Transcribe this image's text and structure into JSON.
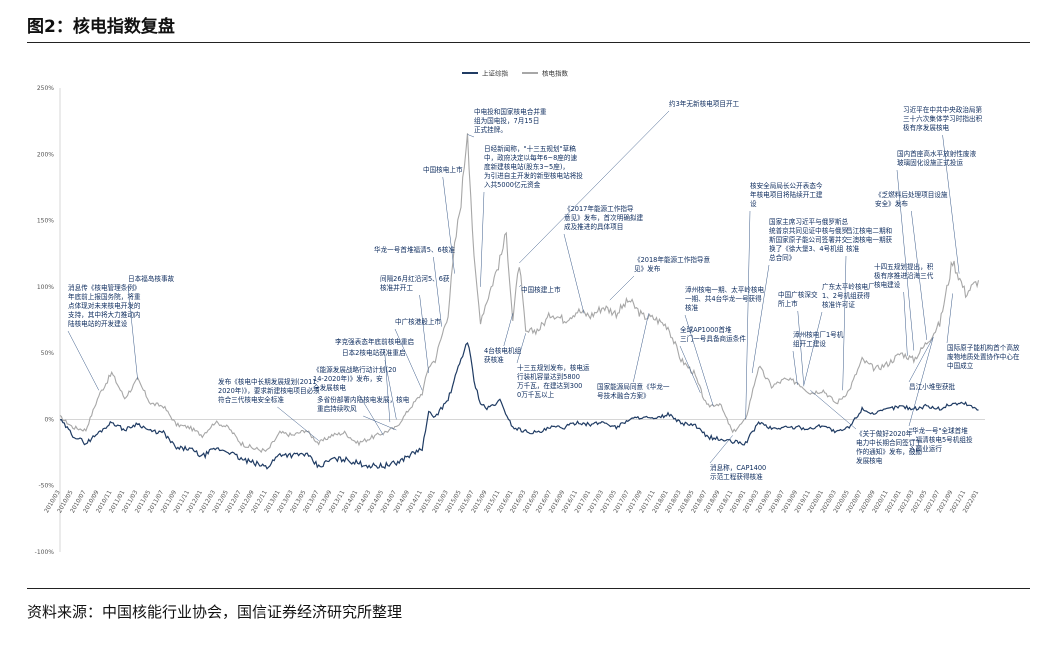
{
  "figure": {
    "title": "图2：核电指数复盘",
    "source": "资料来源：中国核能行业协会，国信证券经济研究所整理"
  },
  "chart_data": {
    "type": "line",
    "ylim": [
      -100,
      250
    ],
    "yticks": [
      "250%",
      "200%",
      "150%",
      "100%",
      "50%",
      "0%",
      "-50%",
      "-100%"
    ],
    "xticks": [
      "2010/03",
      "2010/05",
      "2010/07",
      "2010/09",
      "2010/11",
      "2011/01",
      "2011/03",
      "2011/05",
      "2011/07",
      "2011/09",
      "2011/11",
      "2012/01",
      "2012/03",
      "2012/05",
      "2012/07",
      "2012/09",
      "2012/11",
      "2013/01",
      "2013/03",
      "2013/05",
      "2013/07",
      "2013/09",
      "2013/11",
      "2014/01",
      "2014/03",
      "2014/05",
      "2014/07",
      "2014/09",
      "2014/11",
      "2015/01",
      "2015/03",
      "2015/05",
      "2015/07",
      "2015/09",
      "2015/11",
      "2016/01",
      "2016/03",
      "2016/05",
      "2016/07",
      "2016/09",
      "2016/11",
      "2017/01",
      "2017/03",
      "2017/05",
      "2017/07",
      "2017/09",
      "2017/11",
      "2018/01",
      "2018/03",
      "2018/05",
      "2018/07",
      "2018/09",
      "2018/11",
      "2019/01",
      "2019/03",
      "2019/05",
      "2019/07",
      "2019/09",
      "2019/11",
      "2020/01",
      "2020/03",
      "2020/05",
      "2020/07",
      "2020/09",
      "2020/11",
      "2021/01",
      "2021/03",
      "2021/05",
      "2021/07",
      "2021/09",
      "2021/11",
      "2022/01"
    ],
    "series": [
      {
        "name": "上证综指",
        "color": "#1f3b63",
        "points": [
          [
            "2010/03",
            0
          ],
          [
            "2010/05",
            -12
          ],
          [
            "2010/07",
            -18
          ],
          [
            "2010/09",
            -10
          ],
          [
            "2010/11",
            -2
          ],
          [
            "2011/01",
            -8
          ],
          [
            "2011/03",
            -3
          ],
          [
            "2011/05",
            -9
          ],
          [
            "2011/07",
            -10
          ],
          [
            "2011/09",
            -22
          ],
          [
            "2011/11",
            -22
          ],
          [
            "2012/01",
            -28
          ],
          [
            "2012/03",
            -22
          ],
          [
            "2012/05",
            -24
          ],
          [
            "2012/07",
            -30
          ],
          [
            "2012/09",
            -33
          ],
          [
            "2012/11",
            -36
          ],
          [
            "2013/01",
            -26
          ],
          [
            "2013/03",
            -27
          ],
          [
            "2013/05",
            -26
          ],
          [
            "2013/07",
            -36
          ],
          [
            "2013/09",
            -30
          ],
          [
            "2013/11",
            -30
          ],
          [
            "2014/01",
            -33
          ],
          [
            "2014/03",
            -35
          ],
          [
            "2014/05",
            -35
          ],
          [
            "2014/07",
            -33
          ],
          [
            "2014/09",
            -27
          ],
          [
            "2014/11",
            -22
          ],
          [
            "2014/12",
            5
          ],
          [
            "2015/01",
            2
          ],
          [
            "2015/03",
            15
          ],
          [
            "2015/05",
            45
          ],
          [
            "2015/06",
            60
          ],
          [
            "2015/07",
            30
          ],
          [
            "2015/08",
            12
          ],
          [
            "2015/09",
            8
          ],
          [
            "2015/11",
            14
          ],
          [
            "2016/01",
            -6
          ],
          [
            "2016/03",
            -9
          ],
          [
            "2016/05",
            -10
          ],
          [
            "2016/07",
            -6
          ],
          [
            "2016/09",
            -6
          ],
          [
            "2016/11",
            -2
          ],
          [
            "2017/01",
            -4
          ],
          [
            "2017/03",
            -2
          ],
          [
            "2017/05",
            -6
          ],
          [
            "2017/07",
            0
          ],
          [
            "2017/09",
            2
          ],
          [
            "2017/11",
            0
          ],
          [
            "2018/01",
            4
          ],
          [
            "2018/03",
            -3
          ],
          [
            "2018/05",
            -4
          ],
          [
            "2018/07",
            -13
          ],
          [
            "2018/09",
            -15
          ],
          [
            "2018/11",
            -17
          ],
          [
            "2019/01",
            -18
          ],
          [
            "2019/03",
            -2
          ],
          [
            "2019/05",
            -7
          ],
          [
            "2019/07",
            -6
          ],
          [
            "2019/09",
            -6
          ],
          [
            "2019/11",
            -7
          ],
          [
            "2020/01",
            -4
          ],
          [
            "2020/03",
            -10
          ],
          [
            "2020/05",
            -6
          ],
          [
            "2020/07",
            8
          ],
          [
            "2020/09",
            4
          ],
          [
            "2020/11",
            8
          ],
          [
            "2021/01",
            10
          ],
          [
            "2021/03",
            8
          ],
          [
            "2021/05",
            10
          ],
          [
            "2021/07",
            8
          ],
          [
            "2021/09",
            12
          ],
          [
            "2021/11",
            12
          ],
          [
            "2022/01",
            7
          ]
        ]
      },
      {
        "name": "核电指数",
        "color": "#a7a7a7",
        "points": [
          [
            "2010/03",
            2
          ],
          [
            "2010/05",
            -6
          ],
          [
            "2010/07",
            -8
          ],
          [
            "2010/09",
            18
          ],
          [
            "2010/11",
            35
          ],
          [
            "2011/01",
            16
          ],
          [
            "2011/03",
            30
          ],
          [
            "2011/05",
            12
          ],
          [
            "2011/07",
            10
          ],
          [
            "2011/09",
            -4
          ],
          [
            "2011/11",
            -6
          ],
          [
            "2012/01",
            -12
          ],
          [
            "2012/03",
            -2
          ],
          [
            "2012/05",
            -6
          ],
          [
            "2012/07",
            -18
          ],
          [
            "2012/09",
            -22
          ],
          [
            "2012/11",
            -24
          ],
          [
            "2013/01",
            -10
          ],
          [
            "2013/03",
            -12
          ],
          [
            "2013/05",
            -8
          ],
          [
            "2013/07",
            -18
          ],
          [
            "2013/09",
            -12
          ],
          [
            "2013/11",
            -10
          ],
          [
            "2014/01",
            -18
          ],
          [
            "2014/03",
            -14
          ],
          [
            "2014/05",
            -10
          ],
          [
            "2014/07",
            -6
          ],
          [
            "2014/09",
            8
          ],
          [
            "2014/11",
            20
          ],
          [
            "2014/12",
            40
          ],
          [
            "2015/01",
            45
          ],
          [
            "2015/03",
            80
          ],
          [
            "2015/04",
            130
          ],
          [
            "2015/05",
            165
          ],
          [
            "2015/06",
            220
          ],
          [
            "2015/07",
            120
          ],
          [
            "2015/08",
            75
          ],
          [
            "2015/09",
            90
          ],
          [
            "2015/11",
            120
          ],
          [
            "2015/12",
            140
          ],
          [
            "2016/01",
            75
          ],
          [
            "2016/02",
            118
          ],
          [
            "2016/03",
            65
          ],
          [
            "2016/05",
            68
          ],
          [
            "2016/07",
            80
          ],
          [
            "2016/09",
            75
          ],
          [
            "2016/11",
            82
          ],
          [
            "2017/01",
            78
          ],
          [
            "2017/03",
            85
          ],
          [
            "2017/05",
            80
          ],
          [
            "2017/07",
            90
          ],
          [
            "2017/09",
            78
          ],
          [
            "2017/11",
            76
          ],
          [
            "2018/01",
            70
          ],
          [
            "2018/03",
            45
          ],
          [
            "2018/05",
            35
          ],
          [
            "2018/07",
            10
          ],
          [
            "2018/09",
            12
          ],
          [
            "2018/11",
            -10
          ],
          [
            "2019/01",
            0
          ],
          [
            "2019/03",
            40
          ],
          [
            "2019/05",
            25
          ],
          [
            "2019/07",
            30
          ],
          [
            "2019/09",
            28
          ],
          [
            "2019/11",
            20
          ],
          [
            "2020/01",
            22
          ],
          [
            "2020/03",
            12
          ],
          [
            "2020/05",
            22
          ],
          [
            "2020/07",
            45
          ],
          [
            "2020/09",
            38
          ],
          [
            "2020/11",
            42
          ],
          [
            "2021/01",
            50
          ],
          [
            "2021/03",
            45
          ],
          [
            "2021/05",
            58
          ],
          [
            "2021/07",
            72
          ],
          [
            "2021/09",
            120
          ],
          [
            "2021/11",
            95
          ],
          [
            "2022/01",
            105
          ]
        ]
      }
    ]
  },
  "annotations": [
    "消息传《核电管理条例》年底前上报国务院，将重点体现对未来核电开发的支持，其中将大力推动内陆核电站的开发建设",
    "日本福岛核事故",
    "发布《核电中长期发展规划(2011-2020年)》，要求新建核电项目必须符合三代核电安全标准",
    "《能源发展战略行动计划(2014-2020年)》发布，安全发展核电",
    "李克强表态年底前核电重启",
    "日本2核电站获准重启",
    "多省份部署内陆核电发展，核电重启持续吹风",
    "中广核港股上市",
    "间隔26月红沿河5、6获核准并开工",
    "华龙一号首堆福清5、6核准",
    "中国核电上市",
    "中电投和国家核电合并重组为国电投，7月15日正式挂牌。",
    "日经新闻称，\"十三五规划\"草稿中，政府决定以每年6~8座的速度新建核电站(股东3~5座)，为引进自主开发的新型核电站将投入共5000亿元资金",
    "4台核电机组获核准",
    "中国核建上市",
    "十三五规划发布，核电运行装机容量达到5800万千瓦，在建达到3000万千瓦以上",
    "《2017年能源工作指导意见》发布，首次明确拟建成及推进的具体项目",
    "约3年无新核电项目开工",
    "《2018年能源工作指导意见》发布",
    "国家能源局同意《华龙一号技术融合方案》",
    "全球AP1000首堆三门一号具备商运条件",
    "漳州核电一期、太平岭核电一期、共4台华龙一号获得核准",
    "消息称，CAP1400示范工程获得核准",
    "核安全局局长公开表态今年核电项目将陆续开工建设",
    "国家主席习近平与俄罗斯总统普京共同见证中核与俄罗斯国家原子能公司签署并交换了《徐大堡3、4号机组总合同》",
    "中国广核深交所上市",
    "漳州核电厂1号机组开工建设",
    "广东太平岭核电厂1、2号机组获得核准许可证",
    "《关于做好2020年电力中长期合同签订工作的通知》发布，鼓励发展核电",
    "昌江核电二期和三澳核电一期获核准",
    "十四五规划提出，积极有序推进沿海三代核电建设",
    "国内首座高水平放射性废液玻璃固化设施正式投运",
    "《乏燃料后处理项目设施安全》发布",
    "习近平在中共中央政治局第三十六次集体学习时指出积极有序发展核电",
    "\"华龙一号\"全球首堆—福清核电5号机组投入商业运行",
    "昌江小堆型获批",
    "国际原子能机构首个高放废物地质处置协作中心在中国成立"
  ]
}
